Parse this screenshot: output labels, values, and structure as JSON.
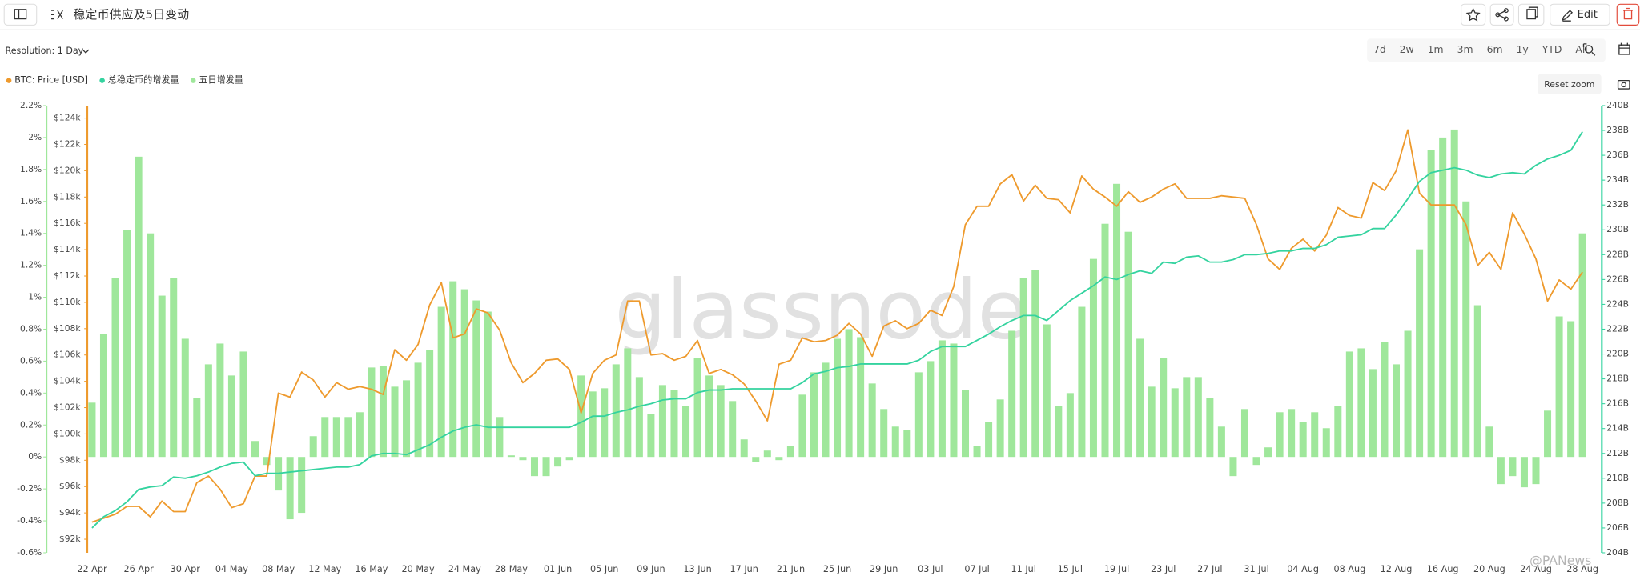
{
  "header": {
    "edit": "Edit"
  },
  "controls": {
    "resolution": "Resolution: 1 Day",
    "ranges": [
      "7d",
      "2w",
      "1m",
      "3m",
      "6m",
      "1y",
      "YTD",
      "All"
    ],
    "reset_zoom": "Reset zoom"
  },
  "watermark": "glassnode",
  "credit": "@PANews",
  "chart_data": {
    "type": "combo",
    "title": "稳定币供应及5日变动",
    "categories": [
      "22 Apr",
      null,
      null,
      null,
      "26 Apr",
      null,
      null,
      null,
      "30 Apr",
      null,
      null,
      null,
      "04 May",
      null,
      null,
      null,
      "08 May",
      null,
      null,
      null,
      "12 May",
      null,
      null,
      null,
      "16 May",
      null,
      null,
      null,
      "20 May",
      null,
      null,
      null,
      "24 May",
      null,
      null,
      null,
      "28 May",
      null,
      null,
      null,
      "01 Jun",
      null,
      null,
      null,
      "05 Jun",
      null,
      null,
      null,
      "09 Jun",
      null,
      null,
      null,
      "13 Jun",
      null,
      null,
      null,
      "17 Jun",
      null,
      null,
      null,
      "21 Jun",
      null,
      null,
      null,
      "25 Jun",
      null,
      null,
      null,
      "29 Jun",
      null,
      null,
      null,
      "03 Jul",
      null,
      null,
      null,
      "07 Jul",
      null,
      null,
      null,
      "11 Jul",
      null,
      null,
      null,
      "15 Jul",
      null,
      null,
      null,
      "19 Jul",
      null,
      null,
      null,
      "23 Jul",
      null,
      null,
      null,
      "27 Jul",
      null,
      null,
      null,
      "31 Jul",
      null,
      null,
      null,
      "04 Aug",
      null,
      null,
      null,
      "08 Aug",
      null,
      null,
      null,
      "12 Aug",
      null,
      null,
      null,
      "16 Aug",
      null,
      null,
      null,
      "20 Aug",
      null,
      null,
      null,
      "24 Aug",
      null,
      null,
      null,
      "28 Aug"
    ],
    "ylim": [
      90.97,
      124.95
    ],
    "yticks": [
      {
        "value": 92,
        "label": "$92k"
      },
      {
        "value": 94,
        "label": "$94k"
      },
      {
        "value": 96,
        "label": "$96k"
      },
      {
        "value": 98,
        "label": "$98k"
      },
      {
        "value": 100,
        "label": "$100k"
      },
      {
        "value": 102,
        "label": "$102k"
      },
      {
        "value": 104,
        "label": "$104k"
      },
      {
        "value": 106,
        "label": "$106k"
      },
      {
        "value": 108,
        "label": "$108k"
      },
      {
        "value": 110,
        "label": "$110k"
      },
      {
        "value": 112,
        "label": "$112k"
      },
      {
        "value": 114,
        "label": "$114k"
      },
      {
        "value": 116,
        "label": "$116k"
      },
      {
        "value": 118,
        "label": "$118k"
      },
      {
        "value": 120,
        "label": "$120k"
      },
      {
        "value": 122,
        "label": "$122k"
      },
      {
        "value": 124,
        "label": "$124k"
      }
    ],
    "y2lim": [
      204,
      240
    ],
    "y2ticks": [
      {
        "value": 204,
        "label": "204B"
      },
      {
        "value": 206,
        "label": "206B"
      },
      {
        "value": 208,
        "label": "208B"
      },
      {
        "value": 210,
        "label": "210B"
      },
      {
        "value": 212,
        "label": "212B"
      },
      {
        "value": 214,
        "label": "214B"
      },
      {
        "value": 216,
        "label": "216B"
      },
      {
        "value": 218,
        "label": "218B"
      },
      {
        "value": 220,
        "label": "220B"
      },
      {
        "value": 222,
        "label": "222B"
      },
      {
        "value": 224,
        "label": "224B"
      },
      {
        "value": 226,
        "label": "226B"
      },
      {
        "value": 228,
        "label": "228B"
      },
      {
        "value": 230,
        "label": "230B"
      },
      {
        "value": 232,
        "label": "232B"
      },
      {
        "value": 234,
        "label": "234B"
      },
      {
        "value": 236,
        "label": "236B"
      },
      {
        "value": 238,
        "label": "238B"
      },
      {
        "value": 240,
        "label": "240B"
      }
    ],
    "y3lim": [
      -0.6,
      2.2
    ],
    "y3ticks": [
      {
        "value": -0.6,
        "label": "-0.6%"
      },
      {
        "value": -0.4,
        "label": "-0.4%"
      },
      {
        "value": -0.2,
        "label": "-0.2%"
      },
      {
        "value": 0,
        "label": "0%"
      },
      {
        "value": 0.2,
        "label": "0.2%"
      },
      {
        "value": 0.4,
        "label": "0.4%"
      },
      {
        "value": 0.6,
        "label": "0.6%"
      },
      {
        "value": 0.8,
        "label": "0.8%"
      },
      {
        "value": 1,
        "label": "1%"
      },
      {
        "value": 1.2,
        "label": "1.2%"
      },
      {
        "value": 1.4,
        "label": "1.4%"
      },
      {
        "value": 1.6,
        "label": "1.6%"
      },
      {
        "value": 1.8,
        "label": "1.8%"
      },
      {
        "value": 2,
        "label": "2%"
      },
      {
        "value": 2.2,
        "label": "2.2%"
      }
    ],
    "series": [
      {
        "name": "BTC: Price [USD]",
        "type": "line",
        "axis": "y",
        "color": "#ee9a2d",
        "values": [
          93.3,
          93.6,
          93.9,
          94.5,
          94.5,
          93.7,
          94.9,
          94.1,
          94.1,
          96.3,
          96.8,
          95.8,
          94.4,
          94.7,
          96.8,
          96.8,
          103.1,
          102.8,
          104.7,
          104.1,
          102.8,
          103.9,
          103.4,
          103.6,
          103.4,
          103.0,
          106.4,
          105.6,
          106.8,
          109.8,
          111.5,
          107.3,
          107.6,
          109.5,
          109.2,
          107.9,
          105.4,
          103.9,
          104.6,
          105.6,
          105.7,
          104.9,
          101.6,
          104.6,
          105.6,
          106.0,
          110.1,
          110.1,
          106.0,
          106.1,
          105.6,
          105.9,
          107.1,
          104.6,
          104.9,
          104.5,
          103.8,
          102.5,
          101.0,
          105.3,
          105.6,
          107.3,
          107.0,
          107.1,
          107.5,
          108.4,
          107.6,
          105.9,
          108.2,
          108.6,
          108.0,
          108.4,
          109.4,
          109.0,
          111.2,
          115.9,
          117.3,
          117.3,
          119.0,
          119.7,
          117.7,
          118.9,
          117.9,
          117.8,
          116.8,
          119.6,
          118.6,
          118.0,
          117.3,
          118.4,
          117.6,
          118.0,
          118.6,
          119.0,
          117.9,
          117.9,
          117.9,
          118.1,
          118.0,
          117.9,
          115.9,
          113.3,
          112.5,
          114.1,
          114.8,
          113.9,
          115.1,
          117.2,
          116.6,
          116.4,
          119.1,
          118.5,
          120.0,
          123.1,
          118.3,
          117.4,
          117.4,
          117.4,
          115.9,
          112.8,
          113.8,
          112.5,
          116.8,
          115.2,
          113.3,
          110.1,
          111.7,
          111.0,
          112.3
        ]
      },
      {
        "name": "总稳定币的增发量",
        "type": "line",
        "axis": "y2",
        "color": "#34d39f",
        "values": [
          206.0,
          206.9,
          207.4,
          208.1,
          209.1,
          209.3,
          209.4,
          210.1,
          210.0,
          210.2,
          210.5,
          210.9,
          211.2,
          211.3,
          210.2,
          210.4,
          210.4,
          210.5,
          210.6,
          210.7,
          210.8,
          210.9,
          210.9,
          211.1,
          211.8,
          212.0,
          212.0,
          211.9,
          212.3,
          212.7,
          213.3,
          213.8,
          214.1,
          214.3,
          214.1,
          214.1,
          214.1,
          214.1,
          214.1,
          214.1,
          214.1,
          214.1,
          214.5,
          215.0,
          215.0,
          215.3,
          215.5,
          215.8,
          216.0,
          216.3,
          216.4,
          216.4,
          216.9,
          217.1,
          217.1,
          217.2,
          217.2,
          217.2,
          217.2,
          217.2,
          217.2,
          217.7,
          218.4,
          218.6,
          218.9,
          219.0,
          219.2,
          219.2,
          219.2,
          219.2,
          219.2,
          219.5,
          220.2,
          220.6,
          220.6,
          220.6,
          221.1,
          221.6,
          222.2,
          222.7,
          223.1,
          223.1,
          222.7,
          223.5,
          224.3,
          224.9,
          225.5,
          226.2,
          226.0,
          226.4,
          226.7,
          226.5,
          227.4,
          227.3,
          227.8,
          227.9,
          227.4,
          227.4,
          227.6,
          228.0,
          228.0,
          228.1,
          228.3,
          228.3,
          228.5,
          228.5,
          228.8,
          229.4,
          229.5,
          229.6,
          230.1,
          230.1,
          231.2,
          232.5,
          233.9,
          234.6,
          234.8,
          235.0,
          234.8,
          234.4,
          234.2,
          234.5,
          234.6,
          234.5,
          235.2,
          235.7,
          236.0,
          236.4,
          237.9
        ]
      },
      {
        "name": "五日增发量",
        "type": "bar",
        "axis": "y3",
        "color": "#9fe79b",
        "values": [
          0.34,
          0.77,
          1.12,
          1.42,
          1.88,
          1.4,
          1.01,
          1.12,
          0.74,
          0.37,
          0.58,
          0.71,
          0.51,
          0.66,
          0.1,
          -0.05,
          -0.21,
          -0.39,
          -0.35,
          0.13,
          0.25,
          0.25,
          0.25,
          0.28,
          0.56,
          0.57,
          0.44,
          0.48,
          0.59,
          0.67,
          0.94,
          1.1,
          1.05,
          0.98,
          0.91,
          0.25,
          0.01,
          -0.02,
          -0.12,
          -0.12,
          -0.06,
          -0.02,
          0.51,
          0.41,
          0.43,
          0.58,
          0.68,
          0.5,
          0.27,
          0.45,
          0.42,
          0.32,
          0.62,
          0.51,
          0.45,
          0.35,
          0.11,
          -0.03,
          0.04,
          -0.02,
          0.07,
          0.39,
          0.53,
          0.59,
          0.74,
          0.8,
          0.75,
          0.46,
          0.3,
          0.19,
          0.17,
          0.53,
          0.6,
          0.73,
          0.71,
          0.42,
          0.07,
          0.22,
          0.36,
          0.79,
          1.12,
          1.17,
          0.83,
          0.32,
          0.4,
          0.94,
          1.24,
          1.46,
          1.71,
          1.41,
          0.74,
          0.44,
          0.62,
          0.43,
          0.5,
          0.5,
          0.37,
          0.19,
          -0.12,
          0.3,
          -0.05,
          0.06,
          0.28,
          0.3,
          0.22,
          0.28,
          0.18,
          0.32,
          0.66,
          0.68,
          0.55,
          0.72,
          0.58,
          0.79,
          1.3,
          1.92,
          2.0,
          2.05,
          1.6,
          0.95,
          0.19,
          -0.17,
          -0.12,
          -0.19,
          -0.17,
          0.29,
          0.88,
          0.85,
          1.4
        ]
      }
    ]
  }
}
